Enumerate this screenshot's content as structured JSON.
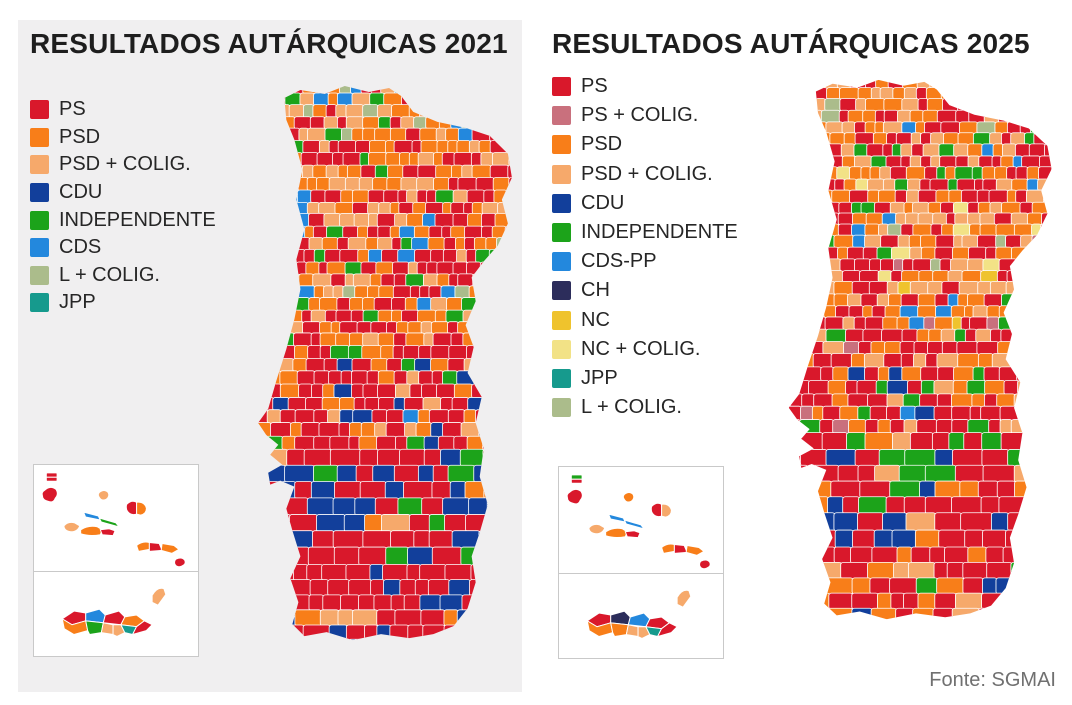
{
  "panels": [
    {
      "id": "2021",
      "title": "RESULTADOS AUTÁRQUICAS 2021",
      "background": "#f0eff0",
      "seed": 7,
      "legend": [
        {
          "label": "PS",
          "color": "#d9182b"
        },
        {
          "label": "PSD",
          "color": "#f87e19"
        },
        {
          "label": "PSD + COLIG.",
          "color": "#f6a96b"
        },
        {
          "label": "CDU",
          "color": "#123f9b"
        },
        {
          "label": "INDEPENDENTE",
          "color": "#1ca31a"
        },
        {
          "label": "CDS",
          "color": "#2388dd"
        },
        {
          "label": "L + COLIG.",
          "color": "#abbc8b"
        },
        {
          "label": "JPP",
          "color": "#169a8d"
        }
      ],
      "map": {
        "zones": [
          {
            "untilY": 0.14,
            "cell": [
              12,
              8,
              18
            ],
            "weights": {
              "PS": 0.42,
              "PSD": 0.3,
              "PSD + COLIG.": 0.15,
              "CDS": 0.05,
              "INDEPENDENTE": 0.05,
              "L + COLIG.": 0.03
            }
          },
          {
            "untilY": 0.42,
            "cell": [
              12,
              8,
              18
            ],
            "weights": {
              "PS": 0.44,
              "PSD": 0.28,
              "PSD + COLIG.": 0.16,
              "INDEPENDENTE": 0.06,
              "CDS": 0.04,
              "L + COLIG.": 0.02
            }
          },
          {
            "untilY": 0.6,
            "cell": [
              13,
              10,
              20
            ],
            "weights": {
              "PS": 0.52,
              "PSD": 0.22,
              "PSD + COLIG.": 0.09,
              "INDEPENDENTE": 0.07,
              "CDU": 0.08,
              "CDS": 0.02
            }
          },
          {
            "untilY": 0.8,
            "cell": [
              17,
              14,
              30
            ],
            "weights": {
              "PS": 0.46,
              "CDU": 0.34,
              "PSD": 0.06,
              "PSD + COLIG.": 0.06,
              "INDEPENDENTE": 0.08
            }
          },
          {
            "untilY": 1.01,
            "cell": [
              15,
              12,
              26
            ],
            "weights": {
              "PS": 0.66,
              "CDU": 0.16,
              "PSD": 0.1,
              "PSD + COLIG.": 0.08
            }
          }
        ]
      },
      "azores": [
        {
          "name": "corvo-north",
          "color": "#d9182b"
        },
        {
          "name": "corvo-south",
          "color": "#d9182b"
        },
        {
          "name": "flores",
          "color": "#d9182b"
        },
        {
          "name": "faial",
          "color": "#f6a96b"
        },
        {
          "name": "pico-west",
          "color": "#f87e19"
        },
        {
          "name": "pico-east",
          "color": "#d9182b"
        },
        {
          "name": "sao-jorge-west",
          "color": "#2388dd"
        },
        {
          "name": "sao-jorge-east",
          "color": "#1ca31a"
        },
        {
          "name": "graciosa",
          "color": "#f6a96b"
        },
        {
          "name": "terceira-west",
          "color": "#d9182b"
        },
        {
          "name": "terceira-east",
          "color": "#f87e19"
        },
        {
          "name": "sao-miguel-west",
          "color": "#f87e19"
        },
        {
          "name": "sao-miguel-mid",
          "color": "#d9182b"
        },
        {
          "name": "sao-miguel-east",
          "color": "#f87e19"
        },
        {
          "name": "santa-maria",
          "color": "#d9182b"
        }
      ],
      "madeira": [
        {
          "name": "northwest",
          "color": "#d9182b"
        },
        {
          "name": "southwest",
          "color": "#f87e19"
        },
        {
          "name": "north-center-west",
          "color": "#2388dd"
        },
        {
          "name": "north-center-east",
          "color": "#d9182b"
        },
        {
          "name": "northeast",
          "color": "#f87e19"
        },
        {
          "name": "south-center-west",
          "color": "#1ca31a"
        },
        {
          "name": "south-center",
          "color": "#f6a96b"
        },
        {
          "name": "south-center-east",
          "color": "#f6a96b"
        },
        {
          "name": "southeast",
          "color": "#169a8d"
        },
        {
          "name": "east",
          "color": "#d9182b"
        },
        {
          "name": "porto-santo",
          "color": "#f6a96b"
        }
      ]
    },
    {
      "id": "2025",
      "title": "RESULTADOS AUTÁRQUICAS 2025",
      "background": "#ffffff",
      "seed": 11,
      "source": "Fonte: SGMAI",
      "legend": [
        {
          "label": "PS",
          "color": "#d9182b"
        },
        {
          "label": "PS + COLIG.",
          "color": "#c9707d"
        },
        {
          "label": "PSD",
          "color": "#f87e19"
        },
        {
          "label": "PSD + COLIG.",
          "color": "#f6a96b"
        },
        {
          "label": "CDU",
          "color": "#123f9b"
        },
        {
          "label": "INDEPENDENTE",
          "color": "#1ca31a"
        },
        {
          "label": "CDS-PP",
          "color": "#2388dd"
        },
        {
          "label": "CH",
          "color": "#2c2d5b"
        },
        {
          "label": "NC",
          "color": "#efc32d"
        },
        {
          "label": "NC + COLIG.",
          "color": "#f2e286"
        },
        {
          "label": "JPP",
          "color": "#169a8d"
        },
        {
          "label": "L + COLIG.",
          "color": "#abbc8b"
        }
      ],
      "map": {
        "zones": [
          {
            "untilY": 0.14,
            "cell": [
              12,
              8,
              18
            ],
            "weights": {
              "PS": 0.32,
              "PSD": 0.3,
              "PSD + COLIG.": 0.22,
              "CDS-PP": 0.05,
              "INDEPENDENTE": 0.06,
              "L + COLIG.": 0.02
            }
          },
          {
            "untilY": 0.42,
            "cell": [
              12,
              8,
              18
            ],
            "weights": {
              "PS": 0.3,
              "PSD": 0.34,
              "PSD + COLIG.": 0.22,
              "INDEPENDENTE": 0.05,
              "CDS-PP": 0.03,
              "PS + COLIG.": 0.02,
              "NC + COLIG.": 0.02,
              "NC": 0.01,
              "L + COLIG.": 0.01
            }
          },
          {
            "untilY": 0.6,
            "cell": [
              13,
              10,
              20
            ],
            "weights": {
              "PS": 0.46,
              "PSD": 0.24,
              "PSD + COLIG.": 0.12,
              "INDEPENDENTE": 0.09,
              "CDU": 0.06,
              "PS + COLIG.": 0.02,
              "CDS-PP": 0.01
            }
          },
          {
            "untilY": 0.8,
            "cell": [
              17,
              14,
              30
            ],
            "weights": {
              "PS": 0.56,
              "CDU": 0.16,
              "PSD": 0.1,
              "PSD + COLIG.": 0.08,
              "INDEPENDENTE": 0.1
            }
          },
          {
            "untilY": 1.01,
            "cell": [
              15,
              12,
              26
            ],
            "weights": {
              "PS": 0.6,
              "PSD": 0.18,
              "CDU": 0.08,
              "PSD + COLIG.": 0.08,
              "INDEPENDENTE": 0.04,
              "CH": 0.02
            }
          }
        ]
      },
      "azores": [
        {
          "name": "corvo-north",
          "color": "#1ca31a"
        },
        {
          "name": "corvo-south",
          "color": "#d9182b"
        },
        {
          "name": "flores",
          "color": "#d9182b"
        },
        {
          "name": "faial",
          "color": "#f6a96b"
        },
        {
          "name": "pico-west",
          "color": "#f87e19"
        },
        {
          "name": "pico-east",
          "color": "#d9182b"
        },
        {
          "name": "sao-jorge-west",
          "color": "#2388dd"
        },
        {
          "name": "sao-jorge-east",
          "color": "#2388dd"
        },
        {
          "name": "graciosa",
          "color": "#f87e19"
        },
        {
          "name": "terceira-west",
          "color": "#d9182b"
        },
        {
          "name": "terceira-east",
          "color": "#f6a96b"
        },
        {
          "name": "sao-miguel-west",
          "color": "#f87e19"
        },
        {
          "name": "sao-miguel-mid",
          "color": "#d9182b"
        },
        {
          "name": "sao-miguel-east",
          "color": "#f87e19"
        },
        {
          "name": "santa-maria",
          "color": "#d9182b"
        }
      ],
      "madeira": [
        {
          "name": "northwest",
          "color": "#d9182b"
        },
        {
          "name": "southwest",
          "color": "#f87e19"
        },
        {
          "name": "north-center-west",
          "color": "#2c2d5b"
        },
        {
          "name": "north-center-east",
          "color": "#2388dd"
        },
        {
          "name": "northeast",
          "color": "#d9182b"
        },
        {
          "name": "south-center-west",
          "color": "#f87e19"
        },
        {
          "name": "south-center",
          "color": "#f6a96b"
        },
        {
          "name": "south-center-east",
          "color": "#f6a96b"
        },
        {
          "name": "southeast",
          "color": "#169a8d"
        },
        {
          "name": "east",
          "color": "#d9182b"
        },
        {
          "name": "porto-santo",
          "color": "#f6a96b"
        }
      ]
    }
  ]
}
